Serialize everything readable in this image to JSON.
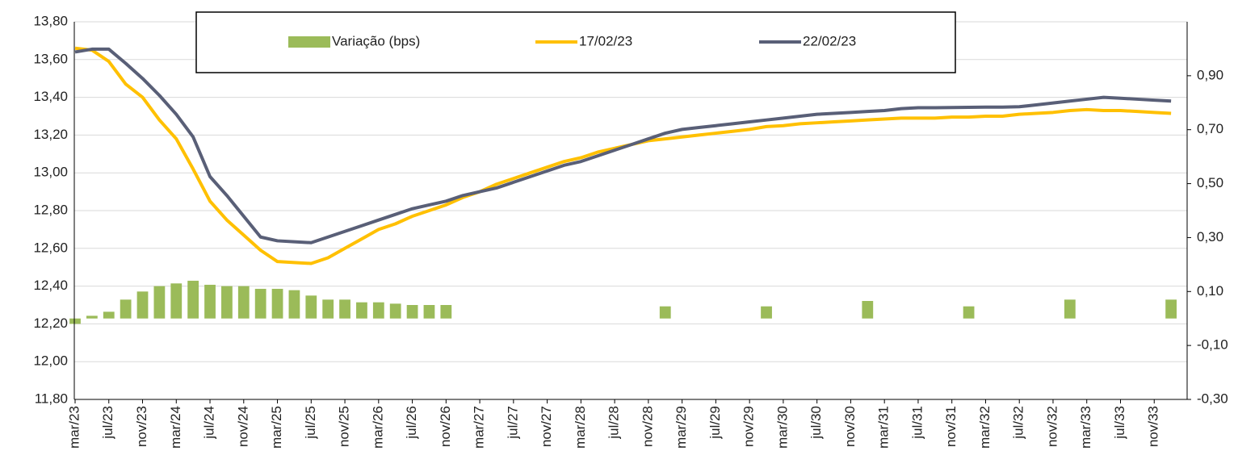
{
  "chart_data": {
    "type": "combo",
    "categories": [
      "mar/23",
      null,
      "jul/23",
      null,
      "nov/23",
      null,
      "mar/24",
      null,
      "jul/24",
      null,
      "nov/24",
      null,
      "mar/25",
      null,
      "jul/25",
      null,
      "nov/25",
      null,
      "mar/26",
      null,
      "jul/26",
      null,
      "nov/26",
      null,
      "mar/27",
      null,
      "jul/27",
      null,
      "nov/27",
      null,
      "mar/28",
      null,
      "jul/28",
      null,
      "nov/28",
      null,
      "mar/29",
      null,
      "jul/29",
      null,
      "nov/29",
      null,
      "mar/30",
      null,
      "jul/30",
      null,
      "nov/30",
      null,
      "mar/31",
      null,
      "jul/31",
      null,
      "nov/31",
      null,
      "mar/32",
      null,
      "jul/32",
      null,
      "nov/32",
      null,
      "mar/33",
      null,
      "jul/33",
      null,
      "nov/33",
      null
    ],
    "series": [
      {
        "name": "Variação (bps)",
        "type": "bar",
        "axis": "y2",
        "color": "#9bbb59",
        "values": [
          -0.02,
          0.01,
          0.025,
          0.07,
          0.1,
          0.12,
          0.13,
          0.14,
          0.125,
          0.12,
          0.12,
          0.11,
          0.11,
          0.105,
          0.085,
          0.07,
          0.07,
          0.06,
          0.06,
          0.055,
          0.05,
          0.05,
          0.05,
          null,
          null,
          null,
          null,
          null,
          null,
          null,
          null,
          null,
          null,
          null,
          null,
          0.045,
          null,
          null,
          null,
          null,
          null,
          0.045,
          null,
          null,
          null,
          null,
          null,
          0.065,
          null,
          null,
          null,
          null,
          null,
          0.045,
          null,
          null,
          null,
          null,
          null,
          0.07,
          null,
          null,
          null,
          null,
          null,
          0.07
        ]
      },
      {
        "name": "17/02/23",
        "type": "line",
        "color": "#ffc000",
        "values": [
          13.66,
          13.65,
          13.59,
          13.47,
          13.4,
          13.28,
          13.18,
          13.02,
          12.85,
          12.75,
          12.67,
          12.59,
          12.53,
          12.525,
          12.52,
          12.55,
          12.6,
          12.65,
          12.7,
          12.73,
          12.77,
          12.8,
          12.83,
          12.87,
          12.9,
          12.94,
          12.97,
          13.0,
          13.03,
          13.06,
          13.08,
          13.11,
          13.13,
          13.15,
          13.17,
          13.18,
          13.19,
          13.2,
          13.21,
          13.22,
          13.23,
          13.245,
          13.25,
          13.26,
          13.265,
          13.27,
          13.275,
          13.28,
          13.285,
          13.29,
          13.29,
          13.29,
          13.295,
          13.295,
          13.3,
          13.3,
          13.31,
          13.315,
          13.32,
          13.33,
          13.335,
          13.33,
          13.33,
          13.325,
          13.32,
          13.315
        ]
      },
      {
        "name": "22/02/23",
        "type": "line",
        "color": "#595f77",
        "values": [
          13.64,
          13.655,
          13.655,
          13.58,
          13.5,
          13.41,
          13.31,
          13.19,
          12.98,
          12.88,
          12.77,
          12.66,
          12.64,
          12.635,
          12.63,
          12.66,
          12.69,
          12.72,
          12.75,
          12.78,
          12.81,
          12.83,
          12.85,
          12.88,
          12.9,
          12.92,
          12.95,
          12.98,
          13.01,
          13.04,
          13.06,
          13.09,
          13.12,
          13.15,
          13.18,
          13.21,
          13.23,
          13.24,
          13.25,
          13.26,
          13.27,
          13.28,
          13.29,
          13.3,
          13.31,
          13.315,
          13.32,
          13.325,
          13.33,
          13.34,
          13.345,
          13.345,
          13.346,
          13.347,
          13.348,
          13.348,
          13.35,
          13.36,
          13.37,
          13.38,
          13.39,
          13.4,
          13.395,
          13.39,
          13.385,
          13.38
        ]
      }
    ],
    "ylim": [
      11.8,
      13.8
    ],
    "yticks": [
      {
        "value": 11.8,
        "label": "11,80"
      },
      {
        "value": 12.0,
        "label": "12,00"
      },
      {
        "value": 12.2,
        "label": "12,20"
      },
      {
        "value": 12.4,
        "label": "12,40"
      },
      {
        "value": 12.6,
        "label": "12,60"
      },
      {
        "value": 12.8,
        "label": "12,80"
      },
      {
        "value": 13.0,
        "label": "13,00"
      },
      {
        "value": 13.2,
        "label": "13,20"
      },
      {
        "value": 13.4,
        "label": "13,40"
      },
      {
        "value": 13.6,
        "label": "13,60"
      },
      {
        "value": 13.8,
        "label": "13,80"
      }
    ],
    "y2lim": [
      -0.3,
      1.1
    ],
    "y2ticks": [
      {
        "value": -0.3,
        "label": "-0,30"
      },
      {
        "value": -0.1,
        "label": "-0,10"
      },
      {
        "value": 0.1,
        "label": "0,10"
      },
      {
        "value": 0.3,
        "label": "0,30"
      },
      {
        "value": 0.5,
        "label": "0,50"
      },
      {
        "value": 0.7,
        "label": "0,70"
      },
      {
        "value": 0.9,
        "label": "0,90"
      }
    ],
    "grid": true,
    "legend": "top"
  }
}
